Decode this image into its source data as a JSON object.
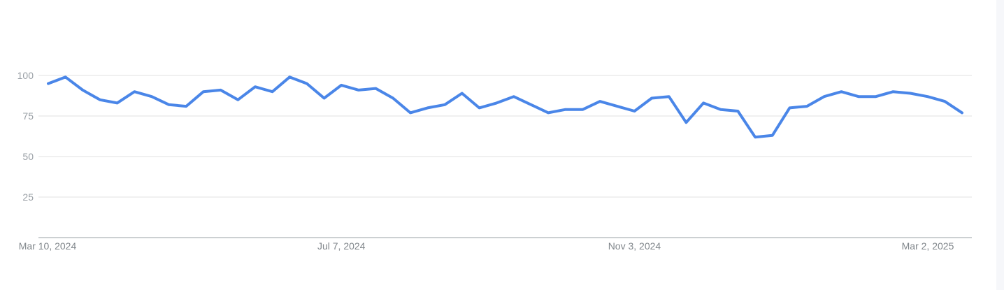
{
  "chart_data": {
    "type": "line",
    "title": "",
    "xlabel": "",
    "ylabel": "",
    "ylim": [
      0,
      100
    ],
    "yticks": [
      25,
      50,
      75,
      100
    ],
    "x_tick_labels": [
      "Mar 10, 2024",
      "Jul 7, 2024",
      "Nov 3, 2024",
      "Mar 2, 2025"
    ],
    "x_tick_indices": [
      0,
      17,
      34,
      51
    ],
    "legend": "none",
    "grid": true,
    "line_color": "#4a86e8",
    "grid_color": "#e0e0e0",
    "series": [
      {
        "values": [
          95,
          99,
          91,
          85,
          83,
          90,
          87,
          82,
          81,
          90,
          91,
          85,
          93,
          90,
          99,
          95,
          86,
          94,
          91,
          92,
          86,
          77,
          80,
          82,
          89,
          80,
          83,
          87,
          82,
          77,
          79,
          79,
          84,
          81,
          78,
          86,
          87,
          71,
          83,
          79,
          78,
          62,
          63,
          80,
          81,
          87,
          90,
          87,
          87,
          90,
          89,
          87,
          84,
          77
        ]
      }
    ]
  }
}
